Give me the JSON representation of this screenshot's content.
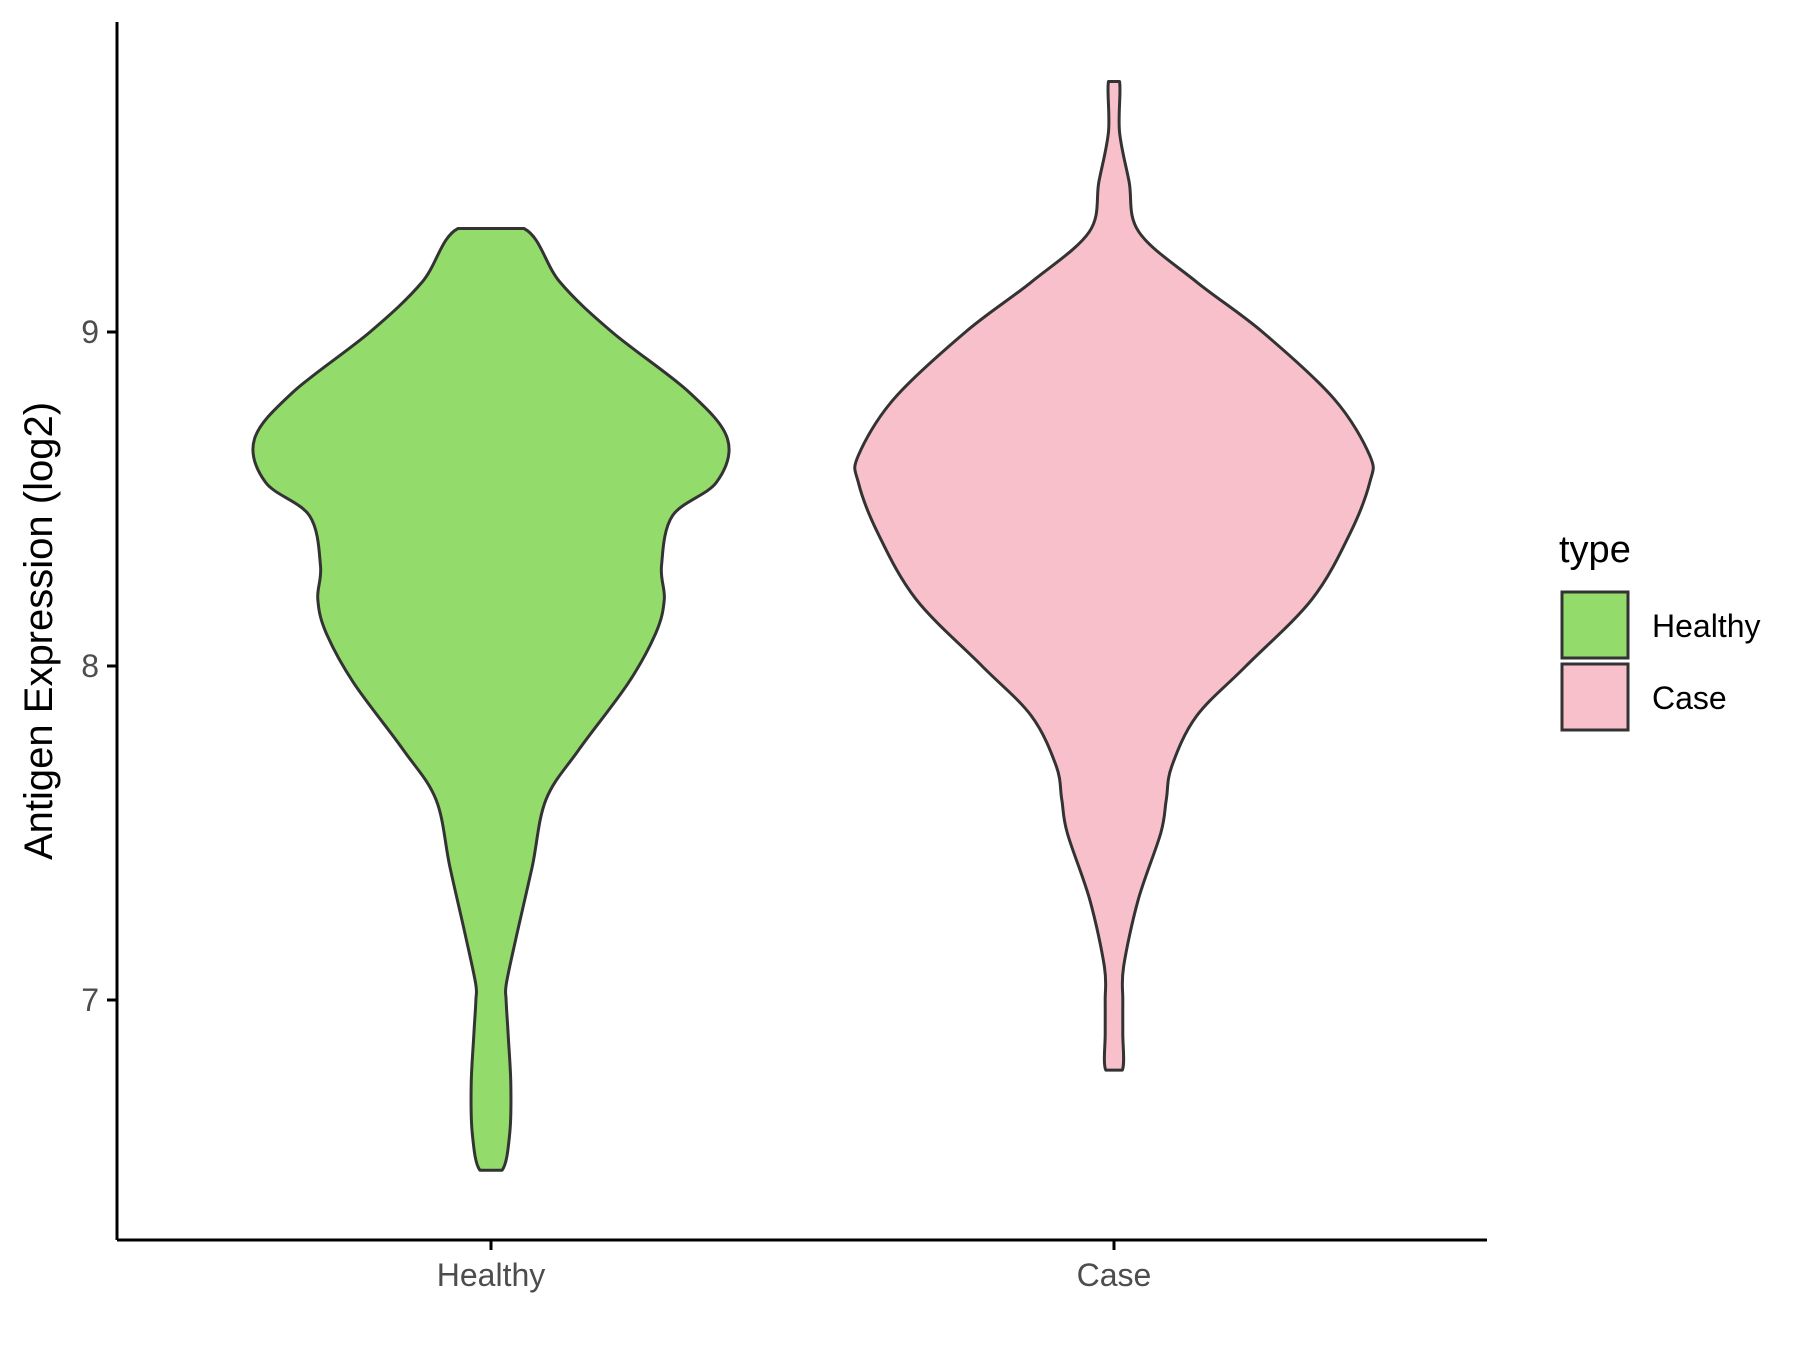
{
  "chart_data": {
    "type": "violin",
    "title": "",
    "xlabel": "",
    "ylabel": "Antigen Expression (log2)",
    "categories": [
      "Healthy",
      "Case"
    ],
    "ylim": [
      6.3,
      9.9
    ],
    "yticks": [
      7,
      8,
      9
    ],
    "ytick_labels": [
      "7",
      "8",
      "9"
    ],
    "grid": false,
    "legend": {
      "title": "type",
      "position": "right",
      "entries": [
        "Healthy",
        "Case"
      ]
    },
    "colors": {
      "Healthy": "#93DC6B",
      "Case": "#F8C0CB",
      "outline": "#333333",
      "axis": "#000000",
      "tick_text": "#4D4D4D"
    },
    "series": [
      {
        "name": "Healthy",
        "color": "#93DC6B",
        "y_min": 6.49,
        "y_max": 9.31,
        "density": [
          [
            6.49,
            0.04
          ],
          [
            6.6,
            0.068
          ],
          [
            6.75,
            0.072
          ],
          [
            6.9,
            0.062
          ],
          [
            7.0,
            0.055
          ],
          [
            7.05,
            0.056
          ],
          [
            7.2,
            0.095
          ],
          [
            7.4,
            0.15
          ],
          [
            7.6,
            0.2
          ],
          [
            7.75,
            0.32
          ],
          [
            7.95,
            0.5
          ],
          [
            8.1,
            0.6
          ],
          [
            8.2,
            0.63
          ],
          [
            8.3,
            0.62
          ],
          [
            8.45,
            0.66
          ],
          [
            8.55,
            0.82
          ],
          [
            8.68,
            0.86
          ],
          [
            8.82,
            0.72
          ],
          [
            9.0,
            0.44
          ],
          [
            9.15,
            0.25
          ],
          [
            9.31,
            0.12
          ]
        ]
      },
      {
        "name": "Case",
        "color": "#F8C0CB",
        "y_min": 6.79,
        "y_max": 9.75,
        "density": [
          [
            6.79,
            0.03
          ],
          [
            6.9,
            0.032
          ],
          [
            7.0,
            0.032
          ],
          [
            7.1,
            0.035
          ],
          [
            7.3,
            0.088
          ],
          [
            7.5,
            0.17
          ],
          [
            7.6,
            0.19
          ],
          [
            7.7,
            0.21
          ],
          [
            7.85,
            0.3
          ],
          [
            8.0,
            0.48
          ],
          [
            8.2,
            0.72
          ],
          [
            8.4,
            0.86
          ],
          [
            8.55,
            0.93
          ],
          [
            8.63,
            0.93
          ],
          [
            8.8,
            0.8
          ],
          [
            9.0,
            0.54
          ],
          [
            9.15,
            0.3
          ],
          [
            9.3,
            0.09
          ],
          [
            9.45,
            0.055
          ],
          [
            9.6,
            0.02
          ],
          [
            9.75,
            0.02
          ]
        ]
      }
    ]
  }
}
